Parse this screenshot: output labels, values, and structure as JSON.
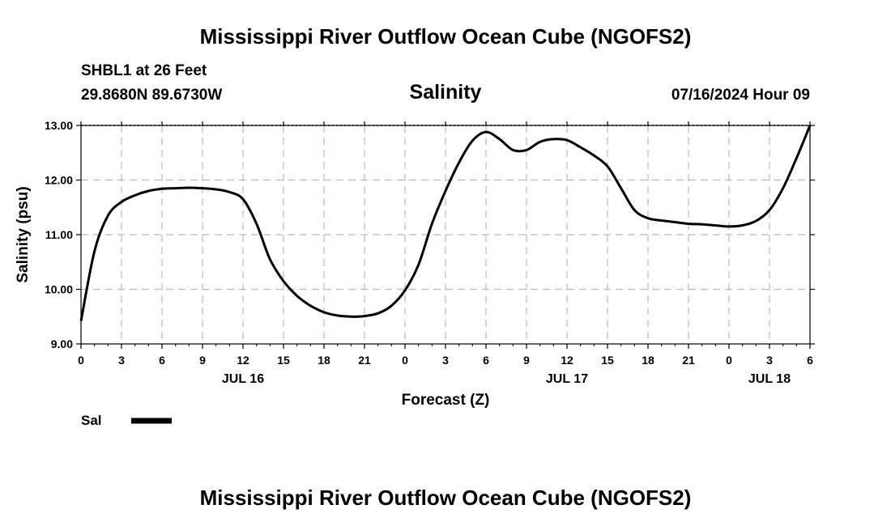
{
  "header": {
    "title": "Mississippi River Outflow Ocean Cube (NGOFS2)",
    "station_line": "SHBL1 at 26 Feet",
    "coords_line": "29.8680N  89.6730W",
    "datetime": "07/16/2024 Hour 09"
  },
  "footer": {
    "title": "Mississippi River Outflow Ocean Cube (NGOFS2)"
  },
  "colors": {
    "line": "#000000",
    "grid": "#bbbbbb",
    "background": "#ffffff"
  },
  "chart_data": {
    "type": "line",
    "title": "Salinity",
    "xlabel": "Forecast (Z)",
    "ylabel": "Salinity (psu)",
    "ylim": [
      9.0,
      13.0
    ],
    "xlim": [
      0,
      54
    ],
    "grid": true,
    "yticks": [
      "9.00",
      "10.00",
      "11.00",
      "12.00",
      "13.00"
    ],
    "ytick_values": [
      9,
      10,
      11,
      12,
      13
    ],
    "xticks": [
      "0",
      "3",
      "6",
      "9",
      "12",
      "15",
      "18",
      "21",
      "0",
      "3",
      "6",
      "9",
      "12",
      "15",
      "18",
      "21",
      "0",
      "3",
      "6"
    ],
    "date_labels": [
      {
        "label": "JUL 16",
        "hour": 12
      },
      {
        "label": "JUL 17",
        "hour": 36
      },
      {
        "label": "JUL 18",
        "hour": 51
      }
    ],
    "legend": [
      {
        "name": "Sal"
      }
    ],
    "series": [
      {
        "name": "Sal",
        "x": [
          0,
          1,
          2,
          3,
          4,
          5,
          6,
          7,
          8,
          9,
          10,
          11,
          12,
          13,
          14,
          15,
          16,
          17,
          18,
          19,
          20,
          21,
          22,
          23,
          24,
          25,
          26,
          27,
          28,
          29,
          30,
          31,
          32,
          33,
          34,
          35,
          36,
          37,
          38,
          39,
          40,
          41,
          42,
          43,
          44,
          45,
          46,
          47,
          48,
          49,
          50,
          51,
          52,
          53,
          54
        ],
        "values": [
          9.42,
          10.7,
          11.35,
          11.6,
          11.72,
          11.8,
          11.84,
          11.85,
          11.86,
          11.85,
          11.83,
          11.78,
          11.65,
          11.2,
          10.55,
          10.15,
          9.88,
          9.7,
          9.58,
          9.52,
          9.5,
          9.51,
          9.56,
          9.7,
          9.98,
          10.45,
          11.2,
          11.8,
          12.32,
          12.72,
          12.88,
          12.75,
          12.55,
          12.55,
          12.7,
          12.75,
          12.73,
          12.6,
          12.45,
          12.25,
          11.85,
          11.45,
          11.3,
          11.26,
          11.23,
          11.2,
          11.19,
          11.17,
          11.15,
          11.17,
          11.25,
          11.45,
          11.85,
          12.4,
          13.0
        ]
      }
    ]
  }
}
